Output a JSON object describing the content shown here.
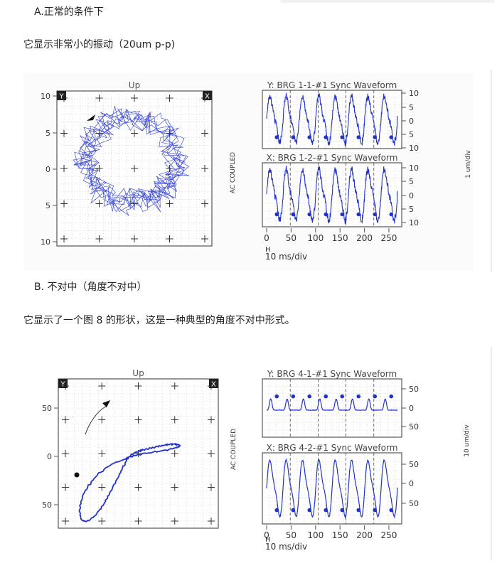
{
  "section_a": {
    "heading": "A.正常的条件下",
    "description": "它显示非常小的振动（20um p-p)",
    "figure": {
      "orbit": {
        "title": "Up",
        "corner_left": "Y",
        "corner_right": "X",
        "y_ticks": [
          "10",
          "5",
          "0",
          "5",
          "10"
        ]
      },
      "side_label": "AC COUPLED",
      "right_label": "1 um/div",
      "wave_y": {
        "title": "Y: BRG 1-1-#1 Sync Waveform",
        "ticks": [
          "10",
          "5",
          "0",
          "5",
          "10"
        ]
      },
      "wave_x": {
        "title": "X: BRG 1-2-#1 Sync Waveform",
        "ticks": [
          "10",
          "5",
          "0",
          "5",
          "10"
        ]
      },
      "x_ticks": [
        "0",
        "50",
        "100",
        "150",
        "200",
        "250"
      ],
      "h_label": "H",
      "time_label": "10 ms/div"
    }
  },
  "section_b": {
    "heading": "B. 不对中（角度不对中）",
    "description": "它显示了一个图 8 的形状，这是一种典型的角度不对中形式。",
    "figure": {
      "orbit": {
        "title": "Up",
        "corner_left": "Y",
        "corner_right": "X",
        "y_ticks": [
          "50",
          "0",
          "50"
        ]
      },
      "side_label": "AC COUPLED",
      "right_label": "10 um/div",
      "wave_y": {
        "title": "Y: BRG 4-1-#1 Sync Waveform",
        "ticks": [
          "50",
          "0",
          "50"
        ]
      },
      "wave_x": {
        "title": "X: BRG 4-2-#1 Sync Waveform",
        "ticks": [
          "50",
          "0",
          "50"
        ]
      },
      "x_ticks": [
        "0",
        "50",
        "100",
        "150",
        "200",
        "250"
      ],
      "h_label": "H",
      "time_label": "10 ms/div"
    }
  },
  "colors": {
    "trace": "#2233cc",
    "grid": "#999999",
    "frame": "#555555"
  }
}
